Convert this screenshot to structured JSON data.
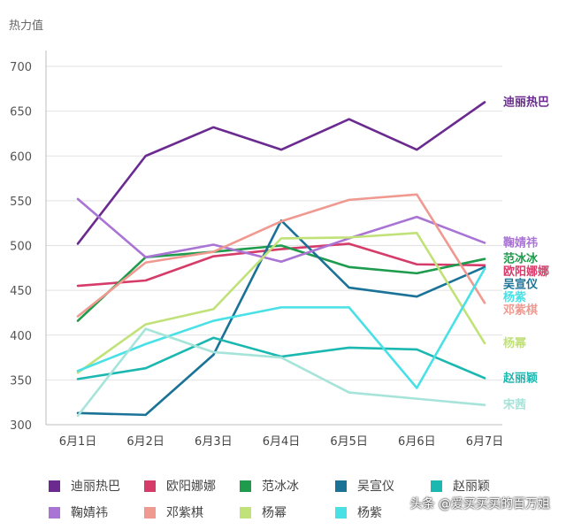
{
  "chart_data": {
    "type": "line",
    "title": "",
    "ylabel": "热力值",
    "xlabel": "",
    "ylim": [
      300,
      700
    ],
    "yticks": [
      300,
      350,
      400,
      450,
      500,
      550,
      600,
      650,
      700
    ],
    "categories": [
      "6月1日",
      "6月2日",
      "6月3日",
      "6月4日",
      "6月5日",
      "6月6日",
      "6月7日"
    ],
    "grid": "horizontal",
    "legend_position": "bottom",
    "series": [
      {
        "name": "迪丽热巴",
        "color": "#6a2a8f",
        "values": [
          502,
          600,
          632,
          607,
          641,
          607,
          660
        ]
      },
      {
        "name": "欧阳娜娜",
        "color": "#d63c6a",
        "values": [
          455,
          461,
          488,
          496,
          502,
          479,
          478
        ]
      },
      {
        "name": "范冰冰",
        "color": "#1e9b4c",
        "values": [
          416,
          487,
          493,
          500,
          476,
          469,
          485
        ]
      },
      {
        "name": "吴宣仪",
        "color": "#1a7397",
        "values": [
          313,
          311,
          378,
          528,
          453,
          443,
          476
        ]
      },
      {
        "name": "赵丽颖",
        "color": "#1ab8b0",
        "values": [
          351,
          363,
          397,
          376,
          386,
          384,
          352
        ]
      },
      {
        "name": "鞠婧祎",
        "color": "#a974d4",
        "values": [
          552,
          487,
          501,
          482,
          508,
          532,
          503
        ]
      },
      {
        "name": "邓紫棋",
        "color": "#ef9990",
        "values": [
          421,
          481,
          493,
          527,
          551,
          557,
          436
        ]
      },
      {
        "name": "杨幂",
        "color": "#c1e179",
        "values": [
          358,
          412,
          429,
          508,
          509,
          514,
          391
        ]
      },
      {
        "name": "杨紫",
        "color": "#49e0e6",
        "values": [
          360,
          390,
          416,
          431,
          431,
          341,
          474
        ]
      },
      {
        "name": "宋茜",
        "color": "#a6e4da",
        "values": [
          310,
          407,
          381,
          375,
          336,
          329,
          322
        ]
      }
    ],
    "end_labels": [
      {
        "text": "迪丽热巴",
        "series": 0
      },
      {
        "text": "鞠婧祎",
        "series": 5
      },
      {
        "text": "范冰冰",
        "series": 2
      },
      {
        "text": "欧阳娜娜",
        "series": 1
      },
      {
        "text": "吴宣仪",
        "series": 3
      },
      {
        "text": "杨紫",
        "series": 8
      },
      {
        "text": "邓紫棋",
        "series": 6
      },
      {
        "text": "杨幂",
        "series": 7
      },
      {
        "text": "赵丽颖",
        "series": 4
      },
      {
        "text": "宋茜",
        "series": 9
      }
    ]
  },
  "legend_rows": [
    [
      {
        "label": "迪丽热巴",
        "color": "#6a2a8f"
      },
      {
        "label": "欧阳娜娜",
        "color": "#d63c6a"
      },
      {
        "label": "范冰冰",
        "color": "#1e9b4c"
      },
      {
        "label": "吴宣仪",
        "color": "#1a7397"
      },
      {
        "label": "赵丽颖",
        "color": "#1ab8b0"
      }
    ],
    [
      {
        "label": "鞠婧祎",
        "color": "#a974d4"
      },
      {
        "label": "邓紫棋",
        "color": "#ef9990"
      },
      {
        "label": "杨幂",
        "color": "#c1e179"
      },
      {
        "label": "杨紫",
        "color": "#49e0e6"
      }
    ]
  ],
  "watermark": "头条 @爱买买买的百万姐"
}
